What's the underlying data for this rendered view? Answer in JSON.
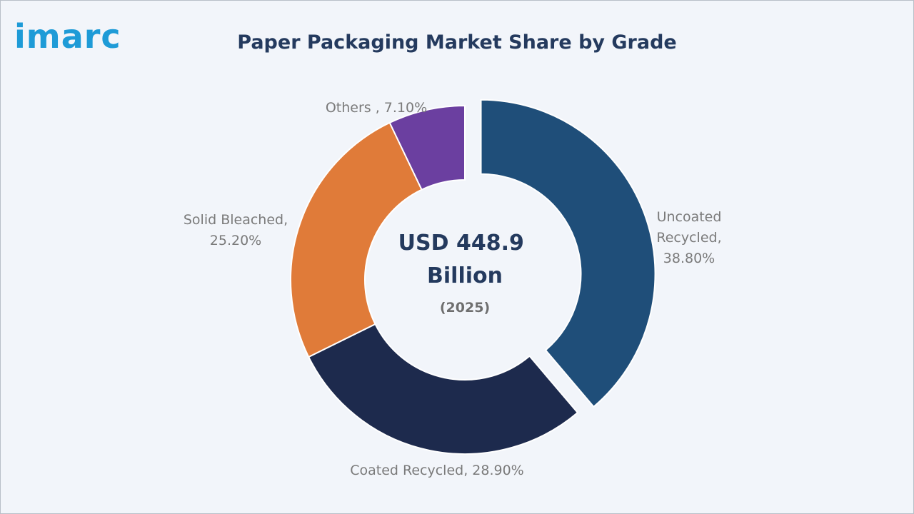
{
  "brand": {
    "logo_text": "imarc"
  },
  "chart_data": {
    "type": "pie",
    "title": "Paper Packaging Market Share by Grade",
    "center": {
      "value_line1": "USD 448.9",
      "value_line2": "Billion",
      "year": "(2025)"
    },
    "slices": [
      {
        "name": "Uncoated Recycled",
        "value": 38.8,
        "label_lines": [
          "Uncoated",
          "Recycled,",
          "38.80%"
        ],
        "color": "#1f4e79",
        "exploded": true
      },
      {
        "name": "Coated Recycled",
        "value": 28.9,
        "label_lines": [
          "Coated Recycled, 28.90%"
        ],
        "color": "#1d2a4d",
        "exploded": false
      },
      {
        "name": "Solid Bleached",
        "value": 25.2,
        "label_lines": [
          "Solid Bleached,",
          "25.20%"
        ],
        "color": "#e07b39",
        "exploded": false
      },
      {
        "name": "Others",
        "value": 7.1,
        "label_lines": [
          "Others , 7.10%"
        ],
        "color": "#6b3fa0",
        "exploded": false
      }
    ]
  }
}
